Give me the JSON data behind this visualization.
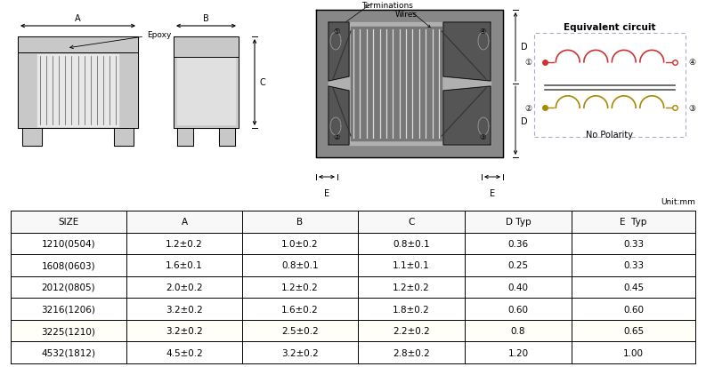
{
  "table_headers": [
    "SIZE",
    "A",
    "B",
    "C",
    "D Typ",
    "E  Typ"
  ],
  "table_rows": [
    [
      "1210(0504)",
      "1.2±0.2",
      "1.0±0.2",
      "0.8±0.1",
      "0.36",
      "0.33"
    ],
    [
      "1608(0603)",
      "1.6±0.1",
      "0.8±0.1",
      "1.1±0.1",
      "0.25",
      "0.33"
    ],
    [
      "2012(0805)",
      "2.0±0.2",
      "1.2±0.2",
      "1.2±0.2",
      "0.40",
      "0.45"
    ],
    [
      "3216(1206)",
      "3.2±0.2",
      "1.6±0.2",
      "1.8±0.2",
      "0.60",
      "0.60"
    ],
    [
      "3225(1210)",
      "3.2±0.2",
      "2.5±0.2",
      "2.2±0.2",
      "0.8",
      "0.65"
    ],
    [
      "4532(1812)",
      "4.5±0.2",
      "3.2±0.2",
      "2.8±0.2",
      "1.20",
      "1.00"
    ]
  ],
  "unit_text": "Unit:mm",
  "highlight_row": 4,
  "bg_color": "#ffffff",
  "border_color": "#000000",
  "fig_width": 7.93,
  "fig_height": 4.14,
  "dpi": 100
}
